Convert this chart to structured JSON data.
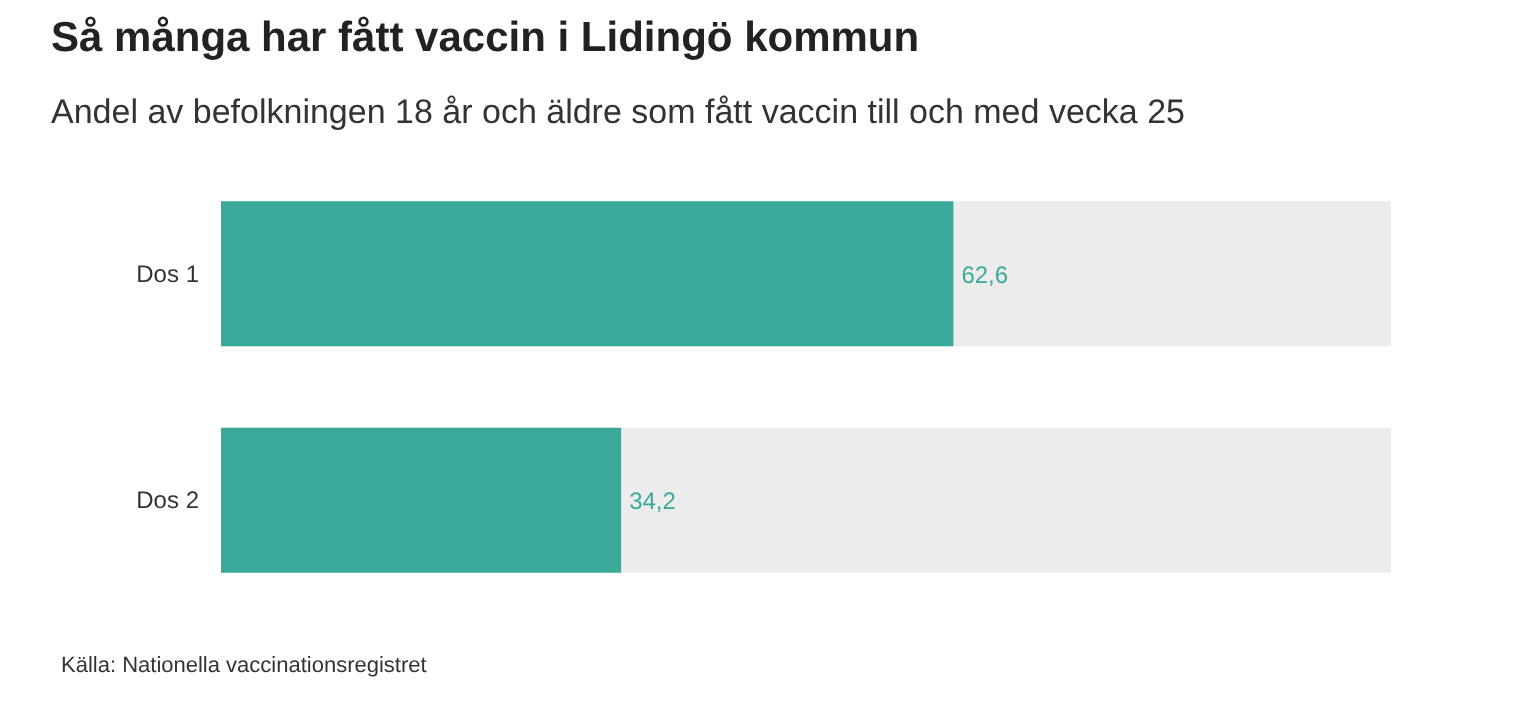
{
  "chart_data": {
    "type": "bar",
    "orientation": "horizontal",
    "title": "Så många har fått vaccin i Lidingö kommun",
    "subtitle": "Andel av befolkningen 18 år och äldre som fått vaccin till och med vecka 25",
    "categories": [
      "Dos 1",
      "Dos 2"
    ],
    "series": [
      {
        "color": "#3aa99a",
        "values": [
          62.6,
          34.2
        ],
        "value_labels": [
          "62,6",
          "34,2"
        ]
      }
    ],
    "bands": [
      {
        "axis": "x",
        "from": 0,
        "to": 100,
        "color": "#ececec"
      }
    ],
    "tick_labels": "y",
    "grid": false,
    "annotations": [
      "Källa: Nationella vaccinationsregistret"
    ]
  }
}
